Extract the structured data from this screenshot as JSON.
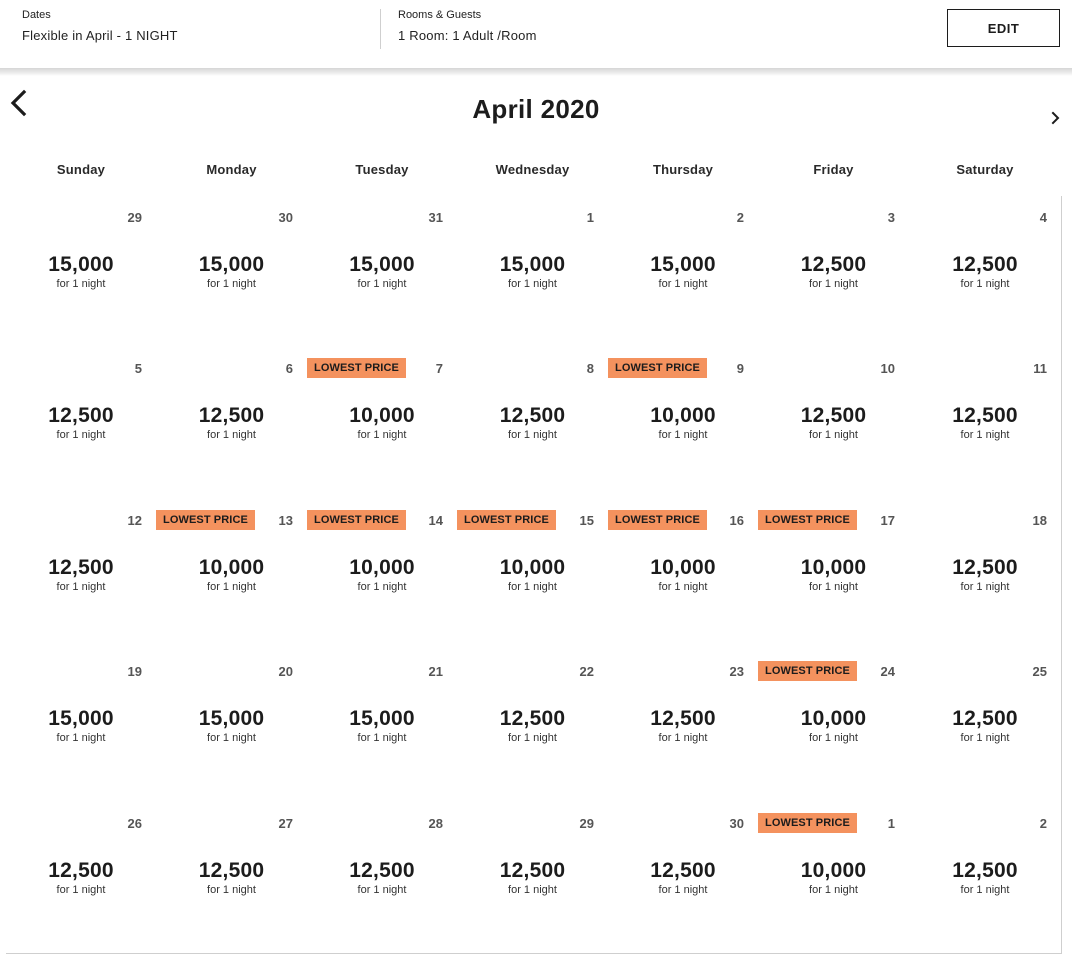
{
  "summary": {
    "dates_label": "Dates",
    "dates_value": "Flexible in April - 1 NIGHT",
    "rooms_label": "Rooms & Guests",
    "rooms_value": "1 Room: 1 Adult /Room",
    "edit_label": "EDIT"
  },
  "calendar": {
    "month_title": "April 2020",
    "prev_icon": "chevron-left-icon",
    "next_icon": "chevron-right-icon",
    "weekdays": [
      "Sunday",
      "Monday",
      "Tuesday",
      "Wednesday",
      "Thursday",
      "Friday",
      "Saturday"
    ],
    "badge_color": "#f4925e",
    "days": [
      {
        "day": "29",
        "price": "15,000",
        "note": "for 1 night",
        "badge": ""
      },
      {
        "day": "30",
        "price": "15,000",
        "note": "for 1 night",
        "badge": ""
      },
      {
        "day": "31",
        "price": "15,000",
        "note": "for 1 night",
        "badge": ""
      },
      {
        "day": "1",
        "price": "15,000",
        "note": "for 1 night",
        "badge": ""
      },
      {
        "day": "2",
        "price": "15,000",
        "note": "for 1 night",
        "badge": ""
      },
      {
        "day": "3",
        "price": "12,500",
        "note": "for 1 night",
        "badge": ""
      },
      {
        "day": "4",
        "price": "12,500",
        "note": "for 1 night",
        "badge": ""
      },
      {
        "day": "5",
        "price": "12,500",
        "note": "for 1 night",
        "badge": ""
      },
      {
        "day": "6",
        "price": "12,500",
        "note": "for 1 night",
        "badge": ""
      },
      {
        "day": "7",
        "price": "10,000",
        "note": "for 1 night",
        "badge": "LOWEST PRICE"
      },
      {
        "day": "8",
        "price": "12,500",
        "note": "for 1 night",
        "badge": ""
      },
      {
        "day": "9",
        "price": "10,000",
        "note": "for 1 night",
        "badge": "LOWEST PRICE"
      },
      {
        "day": "10",
        "price": "12,500",
        "note": "for 1 night",
        "badge": ""
      },
      {
        "day": "11",
        "price": "12,500",
        "note": "for 1 night",
        "badge": ""
      },
      {
        "day": "12",
        "price": "12,500",
        "note": "for 1 night",
        "badge": ""
      },
      {
        "day": "13",
        "price": "10,000",
        "note": "for 1 night",
        "badge": "LOWEST PRICE"
      },
      {
        "day": "14",
        "price": "10,000",
        "note": "for 1 night",
        "badge": "LOWEST PRICE"
      },
      {
        "day": "15",
        "price": "10,000",
        "note": "for 1 night",
        "badge": "LOWEST PRICE"
      },
      {
        "day": "16",
        "price": "10,000",
        "note": "for 1 night",
        "badge": "LOWEST PRICE"
      },
      {
        "day": "17",
        "price": "10,000",
        "note": "for 1 night",
        "badge": "LOWEST PRICE"
      },
      {
        "day": "18",
        "price": "12,500",
        "note": "for 1 night",
        "badge": ""
      },
      {
        "day": "19",
        "price": "15,000",
        "note": "for 1 night",
        "badge": ""
      },
      {
        "day": "20",
        "price": "15,000",
        "note": "for 1 night",
        "badge": ""
      },
      {
        "day": "21",
        "price": "15,000",
        "note": "for 1 night",
        "badge": ""
      },
      {
        "day": "22",
        "price": "12,500",
        "note": "for 1 night",
        "badge": ""
      },
      {
        "day": "23",
        "price": "12,500",
        "note": "for 1 night",
        "badge": ""
      },
      {
        "day": "24",
        "price": "10,000",
        "note": "for 1 night",
        "badge": "LOWEST PRICE"
      },
      {
        "day": "25",
        "price": "12,500",
        "note": "for 1 night",
        "badge": ""
      },
      {
        "day": "26",
        "price": "12,500",
        "note": "for 1 night",
        "badge": ""
      },
      {
        "day": "27",
        "price": "12,500",
        "note": "for 1 night",
        "badge": ""
      },
      {
        "day": "28",
        "price": "12,500",
        "note": "for 1 night",
        "badge": ""
      },
      {
        "day": "29",
        "price": "12,500",
        "note": "for 1 night",
        "badge": ""
      },
      {
        "day": "30",
        "price": "12,500",
        "note": "for 1 night",
        "badge": ""
      },
      {
        "day": "1",
        "price": "10,000",
        "note": "for 1 night",
        "badge": "LOWEST PRICE"
      },
      {
        "day": "2",
        "price": "12,500",
        "note": "for 1 night",
        "badge": ""
      }
    ]
  }
}
